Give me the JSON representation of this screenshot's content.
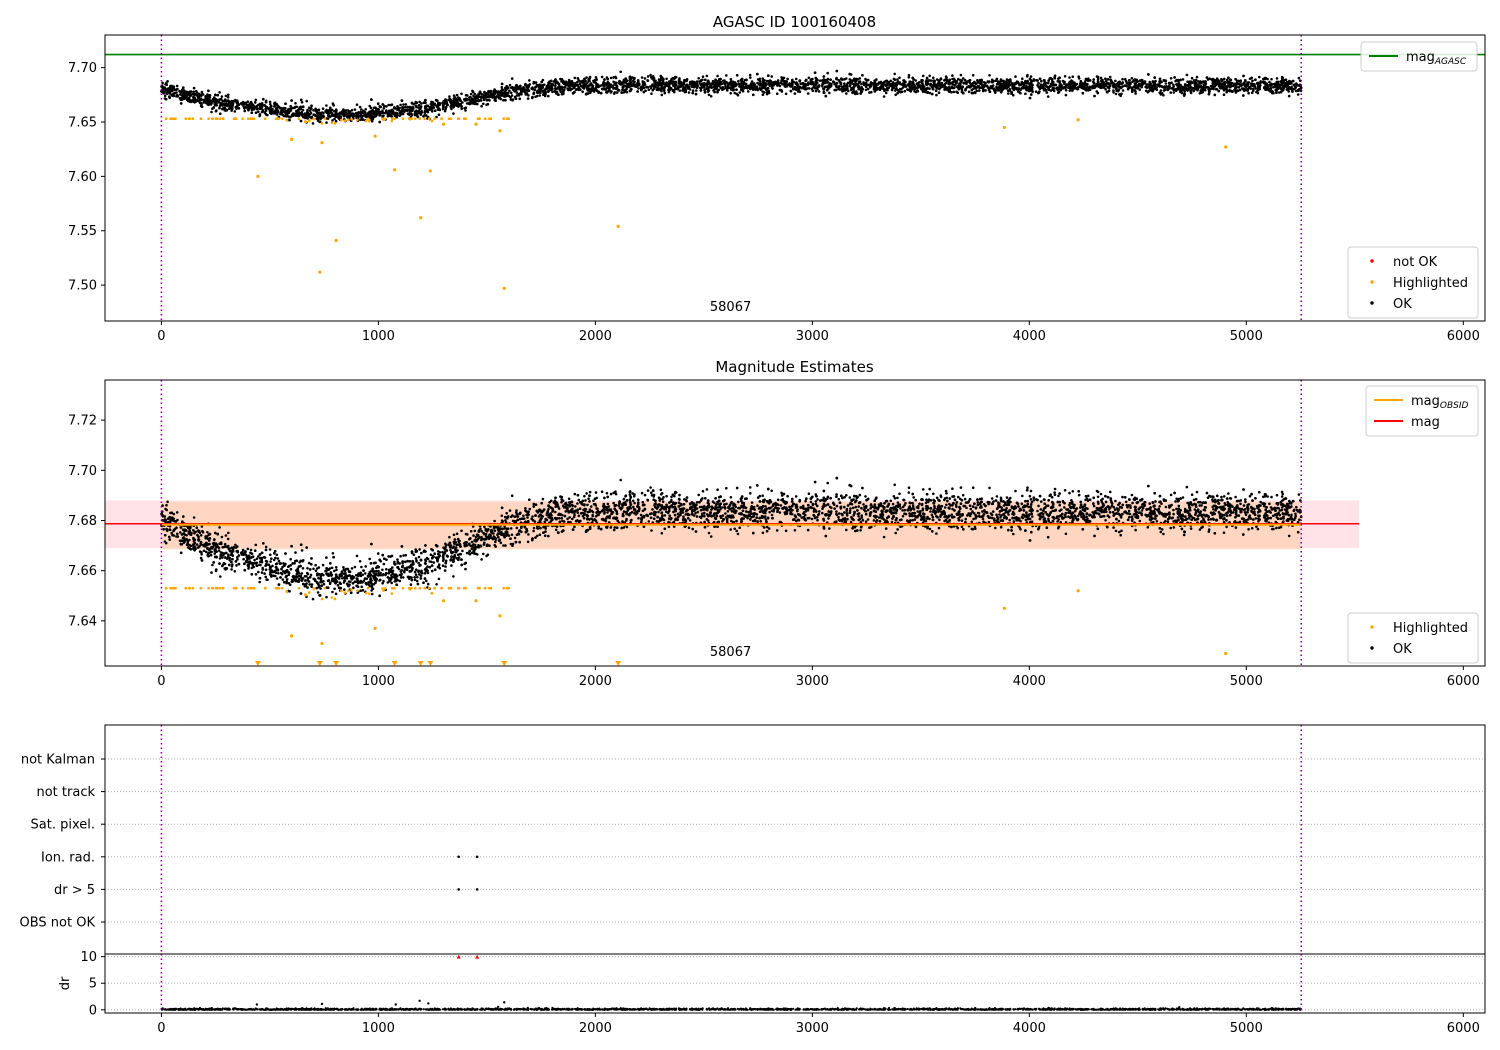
{
  "figure": {
    "title": "AGASC ID 100160408",
    "subtitle": "Magnitude Estimates"
  },
  "colors": {
    "ok": "#000000",
    "highlighted": "#ffa500",
    "not_ok": "#ff0000",
    "agasc_line": "#008000",
    "obsid_line": "#ffa500",
    "mag_line": "#ff0000",
    "obsid_band": "#ffd0b0",
    "mag_band": "#ffc0cb",
    "obs_boundary": "#800080",
    "grid": "#b0b0b0"
  },
  "chart_data": [
    {
      "type": "scatter",
      "name": "agasc-magnitude-panel",
      "title": "AGASC ID 100160408",
      "xlabel": "",
      "ylabel": "",
      "xlim": [
        -260,
        6100
      ],
      "ylim": [
        7.467,
        7.73
      ],
      "xticks": [
        0,
        1000,
        2000,
        3000,
        4000,
        5000,
        6000
      ],
      "yticks": [
        7.5,
        7.55,
        7.6,
        7.65,
        7.7
      ],
      "ytick_labels": [
        "7.50",
        "7.55",
        "7.60",
        "7.65",
        "7.70"
      ],
      "observation_boundaries": [
        0,
        5253
      ],
      "observation_label": {
        "text": "58067",
        "x": 2620
      },
      "hlines": [
        {
          "name": "mag_AGASC",
          "y": 7.712,
          "color": "#008000"
        }
      ],
      "series": [
        {
          "name": "not OK",
          "color": "#ff0000",
          "points": []
        },
        {
          "name": "Highlighted",
          "color": "#ffa500",
          "points": [
            [
              445,
              7.6
            ],
            [
              600,
              7.634
            ],
            [
              730,
              7.512
            ],
            [
              740,
              7.631
            ],
            [
              805,
              7.541
            ],
            [
              985,
              7.637
            ],
            [
              1075,
              7.606
            ],
            [
              1195,
              7.562
            ],
            [
              1240,
              7.605
            ],
            [
              1300,
              7.648
            ],
            [
              1450,
              7.648
            ],
            [
              1560,
              7.642
            ],
            [
              1580,
              7.497
            ],
            [
              2105,
              7.554
            ],
            [
              3885,
              7.645
            ],
            [
              4225,
              7.652
            ],
            [
              4905,
              7.627
            ]
          ]
        },
        {
          "name": "OK",
          "color": "#000000",
          "points": []
        }
      ],
      "legends": [
        {
          "position": "upper-right",
          "entries": [
            "mag_AGASC"
          ]
        },
        {
          "position": "lower-right",
          "entries": [
            "not OK",
            "Highlighted",
            "OK"
          ]
        }
      ],
      "trend": [
        [
          0,
          7.68
        ],
        [
          150,
          7.672
        ],
        [
          300,
          7.666
        ],
        [
          500,
          7.661
        ],
        [
          700,
          7.657
        ],
        [
          900,
          7.656
        ],
        [
          1050,
          7.659
        ],
        [
          1200,
          7.662
        ],
        [
          1350,
          7.667
        ],
        [
          1500,
          7.673
        ],
        [
          1650,
          7.679
        ],
        [
          1850,
          7.683
        ],
        [
          2200,
          7.684
        ],
        [
          5253,
          7.683
        ]
      ]
    },
    {
      "type": "scatter",
      "name": "magnitude-estimates-panel",
      "title": "Magnitude Estimates",
      "xlabel": "",
      "ylabel": "",
      "xlim": [
        -260,
        6100
      ],
      "ylim": [
        7.622,
        7.736
      ],
      "xticks": [
        0,
        1000,
        2000,
        3000,
        4000,
        5000,
        6000
      ],
      "yticks": [
        7.64,
        7.66,
        7.68,
        7.7,
        7.72
      ],
      "ytick_labels": [
        "7.64",
        "7.66",
        "7.68",
        "7.70",
        "7.72"
      ],
      "observation_boundaries": [
        0,
        5253
      ],
      "observation_label": {
        "text": "58067",
        "x": 2620
      },
      "hlines": [
        {
          "name": "mag_OBSID",
          "y": 7.6783,
          "color": "#ffa500",
          "band": [
            7.6685,
            7.6875
          ],
          "x_range": [
            0,
            5253
          ]
        },
        {
          "name": "mag",
          "y": 7.6787,
          "color": "#ff0000",
          "band": [
            7.669,
            7.688
          ],
          "x_range": [
            -260,
            5520
          ]
        }
      ],
      "series": [
        {
          "name": "Highlighted",
          "color": "#ffa500",
          "points": [
            [
              600,
              7.634
            ],
            [
              740,
              7.631
            ],
            [
              985,
              7.637
            ],
            [
              1300,
              7.648
            ],
            [
              1450,
              7.648
            ],
            [
              1560,
              7.642
            ],
            [
              3885,
              7.645
            ],
            [
              4225,
              7.652
            ],
            [
              4905,
              7.627
            ]
          ]
        },
        {
          "name": "OK",
          "color": "#000000",
          "points": []
        }
      ],
      "below_axis_markers": [
        445,
        730,
        805,
        1075,
        1195,
        1240,
        1580,
        2105
      ],
      "legends": [
        {
          "position": "upper-right",
          "entries": [
            "mag_OBSID",
            "mag"
          ]
        },
        {
          "position": "lower-right",
          "entries": [
            "Highlighted",
            "OK"
          ]
        }
      ]
    },
    {
      "type": "scatter",
      "name": "flags-panel",
      "xlim": [
        -260,
        6100
      ],
      "categories": [
        "not Kalman",
        "not track",
        "Sat. pixel.",
        "Ion. rad.",
        "dr > 5",
        "OBS not OK"
      ],
      "observation_boundaries": [
        0,
        5253
      ],
      "flag_points": [
        {
          "category": "Ion. rad.",
          "x": [
            1370,
            1455
          ]
        },
        {
          "category": "dr > 5",
          "x": [
            1370,
            1455
          ]
        }
      ]
    },
    {
      "type": "scatter",
      "name": "dr-panel",
      "ylabel": "dr",
      "xlim": [
        -260,
        6100
      ],
      "ylim": [
        -0.6,
        10.5
      ],
      "yticks": [
        0,
        5,
        10
      ],
      "ytick_labels": [
        "0",
        "5",
        "10"
      ],
      "xticks": [
        0,
        1000,
        2000,
        3000,
        4000,
        5000,
        6000
      ],
      "observation_boundaries": [
        0,
        5253
      ],
      "clipped_points": [
        1370,
        1455
      ],
      "spikes": [
        [
          440,
          1.0
        ],
        [
          740,
          1.1
        ],
        [
          1080,
          1.0
        ],
        [
          1190,
          1.7
        ],
        [
          1230,
          1.2
        ],
        [
          1580,
          1.4
        ]
      ]
    }
  ]
}
